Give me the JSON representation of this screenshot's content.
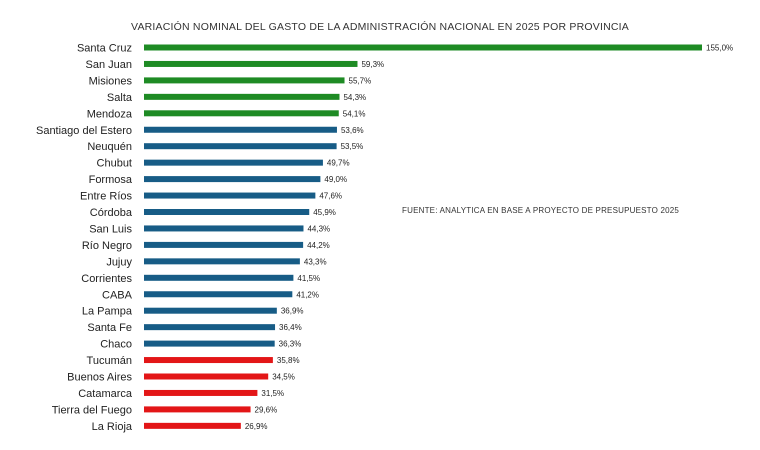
{
  "chart_data": {
    "type": "bar",
    "orientation": "horizontal",
    "title": "VARIACIÓN NOMINAL DEL GASTO DE LA ADMINISTRACIÓN NACIONAL EN 2025 POR PROVINCIA",
    "annotation": "FUENTE: ANALYTICA EN BASE A PROYECTO DE PRESUPUESTO 2025",
    "xlim": [
      0,
      155
    ],
    "grid": false,
    "legend": "none",
    "colors": {
      "top": "#1e8b24",
      "middle": "#175c86",
      "bottom": "#e31617"
    },
    "categories": [
      "Santa Cruz",
      "San Juan",
      "Misiones",
      "Salta",
      "Mendoza",
      "Santiago del Estero",
      "Neuquén",
      "Chubut",
      "Formosa",
      "Entre Ríos",
      "Córdoba",
      "San Luis",
      "Río Negro",
      "Jujuy",
      "Corrientes",
      "CABA",
      "La Pampa",
      "Santa Fe",
      "Chaco",
      "Tucumán",
      "Buenos Aires",
      "Catamarca",
      "Tierra del Fuego",
      "La Rioja"
    ],
    "values": [
      155.0,
      59.3,
      55.7,
      54.3,
      54.1,
      53.6,
      53.5,
      49.7,
      49.0,
      47.6,
      45.9,
      44.3,
      44.2,
      43.3,
      41.5,
      41.2,
      36.9,
      36.4,
      36.3,
      35.8,
      34.5,
      31.5,
      29.6,
      26.9
    ],
    "value_labels": [
      "155,0%",
      "59,3%",
      "55,7%",
      "54,3%",
      "54,1%",
      "53,6%",
      "53,5%",
      "49,7%",
      "49,0%",
      "47,6%",
      "45,9%",
      "44,3%",
      "44,2%",
      "43,3%",
      "41,5%",
      "41,2%",
      "36,9%",
      "36,4%",
      "36,3%",
      "35,8%",
      "34,5%",
      "31,5%",
      "29,6%",
      "26,9%"
    ],
    "bar_color_groups": [
      "top",
      "top",
      "top",
      "top",
      "top",
      "middle",
      "middle",
      "middle",
      "middle",
      "middle",
      "middle",
      "middle",
      "middle",
      "middle",
      "middle",
      "middle",
      "middle",
      "middle",
      "middle",
      "bottom",
      "bottom",
      "bottom",
      "bottom",
      "bottom"
    ]
  }
}
